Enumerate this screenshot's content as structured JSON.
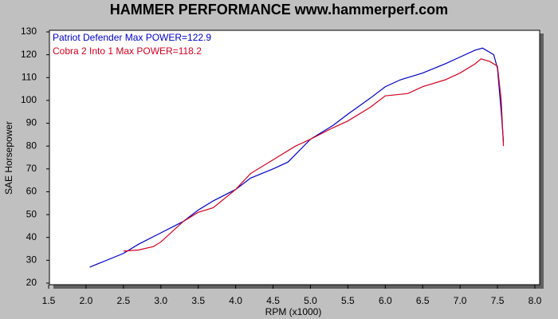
{
  "chart_data": {
    "type": "line",
    "title": "HAMMER PERFORMANCE www.hammerperf.com",
    "x_label": "RPM (x1000)",
    "y_label": "SAE Horsepower",
    "xlim": [
      1.5,
      8.0
    ],
    "ylim": [
      20,
      130
    ],
    "xticks": [
      {
        "value": 1.5,
        "label": "1.5"
      },
      {
        "value": 2,
        "label": "2.0"
      },
      {
        "value": 2.5,
        "label": "2.5"
      },
      {
        "value": 3,
        "label": "3.0"
      },
      {
        "value": 3.5,
        "label": "3.5"
      },
      {
        "value": 4,
        "label": "4.0"
      },
      {
        "value": 4.5,
        "label": "4.5"
      },
      {
        "value": 5,
        "label": "5.0"
      },
      {
        "value": 5.5,
        "label": "5.5"
      },
      {
        "value": 6,
        "label": "6.0"
      },
      {
        "value": 6.5,
        "label": "6.5"
      },
      {
        "value": 7,
        "label": "7.0"
      },
      {
        "value": 7.5,
        "label": "7.5"
      },
      {
        "value": 8,
        "label": "8.0"
      }
    ],
    "yticks": [
      20,
      30,
      40,
      50,
      60,
      70,
      80,
      90,
      100,
      110,
      120,
      130
    ],
    "series": [
      {
        "name": "Patriot Defender  Max POWER=122.9",
        "color": "#0000c0",
        "x": [
          2.05,
          2.2,
          2.5,
          2.7,
          3.0,
          3.3,
          3.5,
          3.7,
          4.0,
          4.2,
          4.5,
          4.7,
          5.0,
          5.3,
          5.5,
          5.8,
          6.0,
          6.2,
          6.5,
          6.8,
          7.0,
          7.2,
          7.3,
          7.4,
          7.45,
          7.5,
          7.55,
          7.58
        ],
        "values": [
          27,
          29,
          33,
          37,
          42,
          47,
          52,
          56,
          61,
          66,
          70,
          73,
          83,
          89,
          94,
          101,
          106,
          109,
          112,
          116,
          119,
          122,
          122.9,
          121,
          120,
          114,
          95,
          82
        ]
      },
      {
        "name": "Cobra 2 Into 1  Max POWER=118.2",
        "color": "#d00020",
        "x": [
          2.5,
          2.7,
          2.9,
          3.0,
          3.3,
          3.5,
          3.7,
          4.0,
          4.2,
          4.5,
          4.8,
          5.0,
          5.3,
          5.5,
          5.8,
          6.0,
          6.3,
          6.5,
          6.8,
          7.0,
          7.2,
          7.28,
          7.4,
          7.5,
          7.55,
          7.58
        ],
        "values": [
          34,
          34.5,
          36,
          38,
          47,
          51,
          53,
          61,
          68,
          74,
          80,
          83,
          88,
          91,
          97,
          102,
          103,
          106,
          109,
          112,
          116,
          118.2,
          117,
          115,
          100,
          80
        ]
      }
    ]
  }
}
